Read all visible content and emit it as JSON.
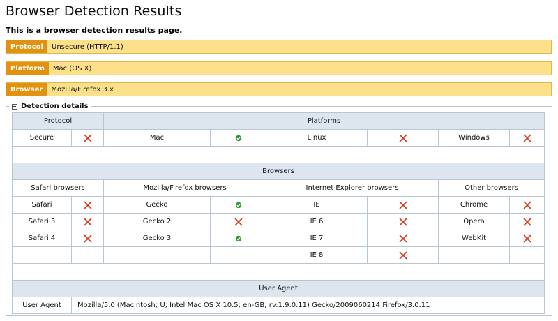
{
  "page": {
    "title": "Browser Detection Results",
    "subtitle": "This is a browser detection results page."
  },
  "summary": [
    {
      "label": "Protocol",
      "value": "Unsecure (HTTP/1.1)"
    },
    {
      "label": "Platform",
      "value": "Mac (OS X)"
    },
    {
      "label": "Browser",
      "value": "Mozilla/Firefox 3.x"
    }
  ],
  "details": {
    "legend": "Detection details",
    "protocol_header": "Protocol",
    "platforms_header": "Platforms",
    "secure": {
      "label": "Secure",
      "status": "cross-icon"
    },
    "platforms": [
      {
        "label": "Mac",
        "status": "check-icon"
      },
      {
        "label": "Linux",
        "status": "cross-icon"
      },
      {
        "label": "Windows",
        "status": "cross-icon"
      }
    ],
    "browsers_header": "Browsers",
    "groups": {
      "safari": "Safari browsers",
      "mozilla": "Mozilla/Firefox browsers",
      "ie": "Internet Explorer browsers",
      "other": "Other browsers"
    },
    "safari": [
      {
        "label": "Safari",
        "status": "cross-icon"
      },
      {
        "label": "Safari 3",
        "status": "cross-icon"
      },
      {
        "label": "Safari 4",
        "status": "cross-icon"
      }
    ],
    "mozilla": [
      {
        "label": "Gecko",
        "status": "check-icon"
      },
      {
        "label": "Gecko 2",
        "status": "cross-icon"
      },
      {
        "label": "Gecko 3",
        "status": "check-icon"
      }
    ],
    "ie": [
      {
        "label": "IE",
        "status": "cross-icon"
      },
      {
        "label": "IE 6",
        "status": "cross-icon"
      },
      {
        "label": "IE 7",
        "status": "cross-icon"
      },
      {
        "label": "IE 8",
        "status": "cross-icon"
      }
    ],
    "other": [
      {
        "label": "Chrome",
        "status": "cross-icon"
      },
      {
        "label": "Opera",
        "status": "cross-icon"
      },
      {
        "label": "WebKit",
        "status": "cross-icon"
      }
    ],
    "user_agent_header": "User Agent",
    "user_agent_label": "User Agent",
    "user_agent_value": "Mozilla/5.0 (Macintosh; U; Intel Mac OS X 10.5; en-GB; rv:1.9.0.11) Gecko/2009060214 Firefox/3.0.11"
  },
  "colors": {
    "summary_bg": "#fde08a",
    "label_bg": "#e2920f",
    "header_bg": "#dde6ee",
    "check": "#2e9a2e",
    "cross": "#d8381e"
  }
}
